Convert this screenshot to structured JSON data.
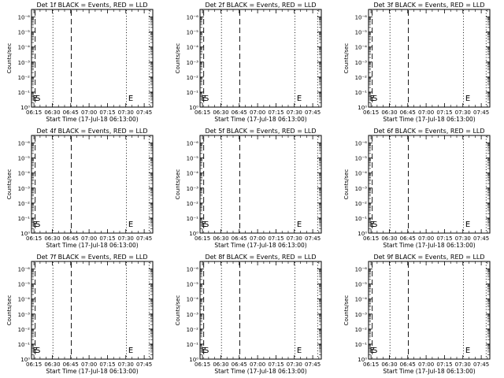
{
  "chart_data": [
    {
      "type": "line",
      "title": "Det 1f BLACK = Events, RED = LLD"
    },
    {
      "type": "line",
      "title": "Det 2f BLACK = Events, RED = LLD"
    },
    {
      "type": "line",
      "title": "Det 3f BLACK = Events, RED = LLD"
    },
    {
      "type": "line",
      "title": "Det 4f BLACK = Events, RED = LLD"
    },
    {
      "type": "line",
      "title": "Det 5f BLACK = Events, RED = LLD"
    },
    {
      "type": "line",
      "title": "Det 6f BLACK = Events, RED = LLD"
    },
    {
      "type": "line",
      "title": "Det 7f BLACK = Events, RED = LLD"
    },
    {
      "type": "line",
      "title": "Det 8f BLACK = Events, RED = LLD"
    },
    {
      "type": "line",
      "title": "Det 9f BLACK = Events, RED = LLD"
    }
  ],
  "shared": {
    "xlabel": "Start Time (17-Jul-18 06:13:00)",
    "ylabel": "Counts/sec",
    "x_ticks": [
      {
        "label": "06:15",
        "min": 2
      },
      {
        "label": "06:30",
        "min": 17
      },
      {
        "label": "06:45",
        "min": 32
      },
      {
        "label": "07:00",
        "min": 47
      },
      {
        "label": "07:15",
        "min": 62
      },
      {
        "label": "07:30",
        "min": 77
      },
      {
        "label": "07:45",
        "min": 92
      }
    ],
    "xlim_minutes": [
      0,
      99
    ],
    "y_ticks": [
      {
        "label": "10⁰",
        "exp": 0
      },
      {
        "label": "10⁻¹",
        "exp": 1
      },
      {
        "label": "10⁻²",
        "exp": 2
      },
      {
        "label": "10⁻³",
        "exp": 3
      },
      {
        "label": "10⁻⁴",
        "exp": 4
      },
      {
        "label": "10⁻⁵",
        "exp": 5
      },
      {
        "label": "10⁻⁶",
        "exp": 6
      }
    ],
    "ylog_decades": 6.5,
    "markers": [
      {
        "text": "E",
        "min": 1
      },
      {
        "text": "S",
        "min": 3.2
      },
      {
        "text": "E",
        "min": 79
      }
    ],
    "lines": [
      {
        "min": 3,
        "style": "dashed"
      },
      {
        "min": 32.5,
        "style": "dashed"
      },
      {
        "min": 17.5,
        "style": "dotted"
      },
      {
        "min": 77.5,
        "style": "dotted"
      },
      {
        "min": 96,
        "style": "dotted"
      }
    ]
  }
}
